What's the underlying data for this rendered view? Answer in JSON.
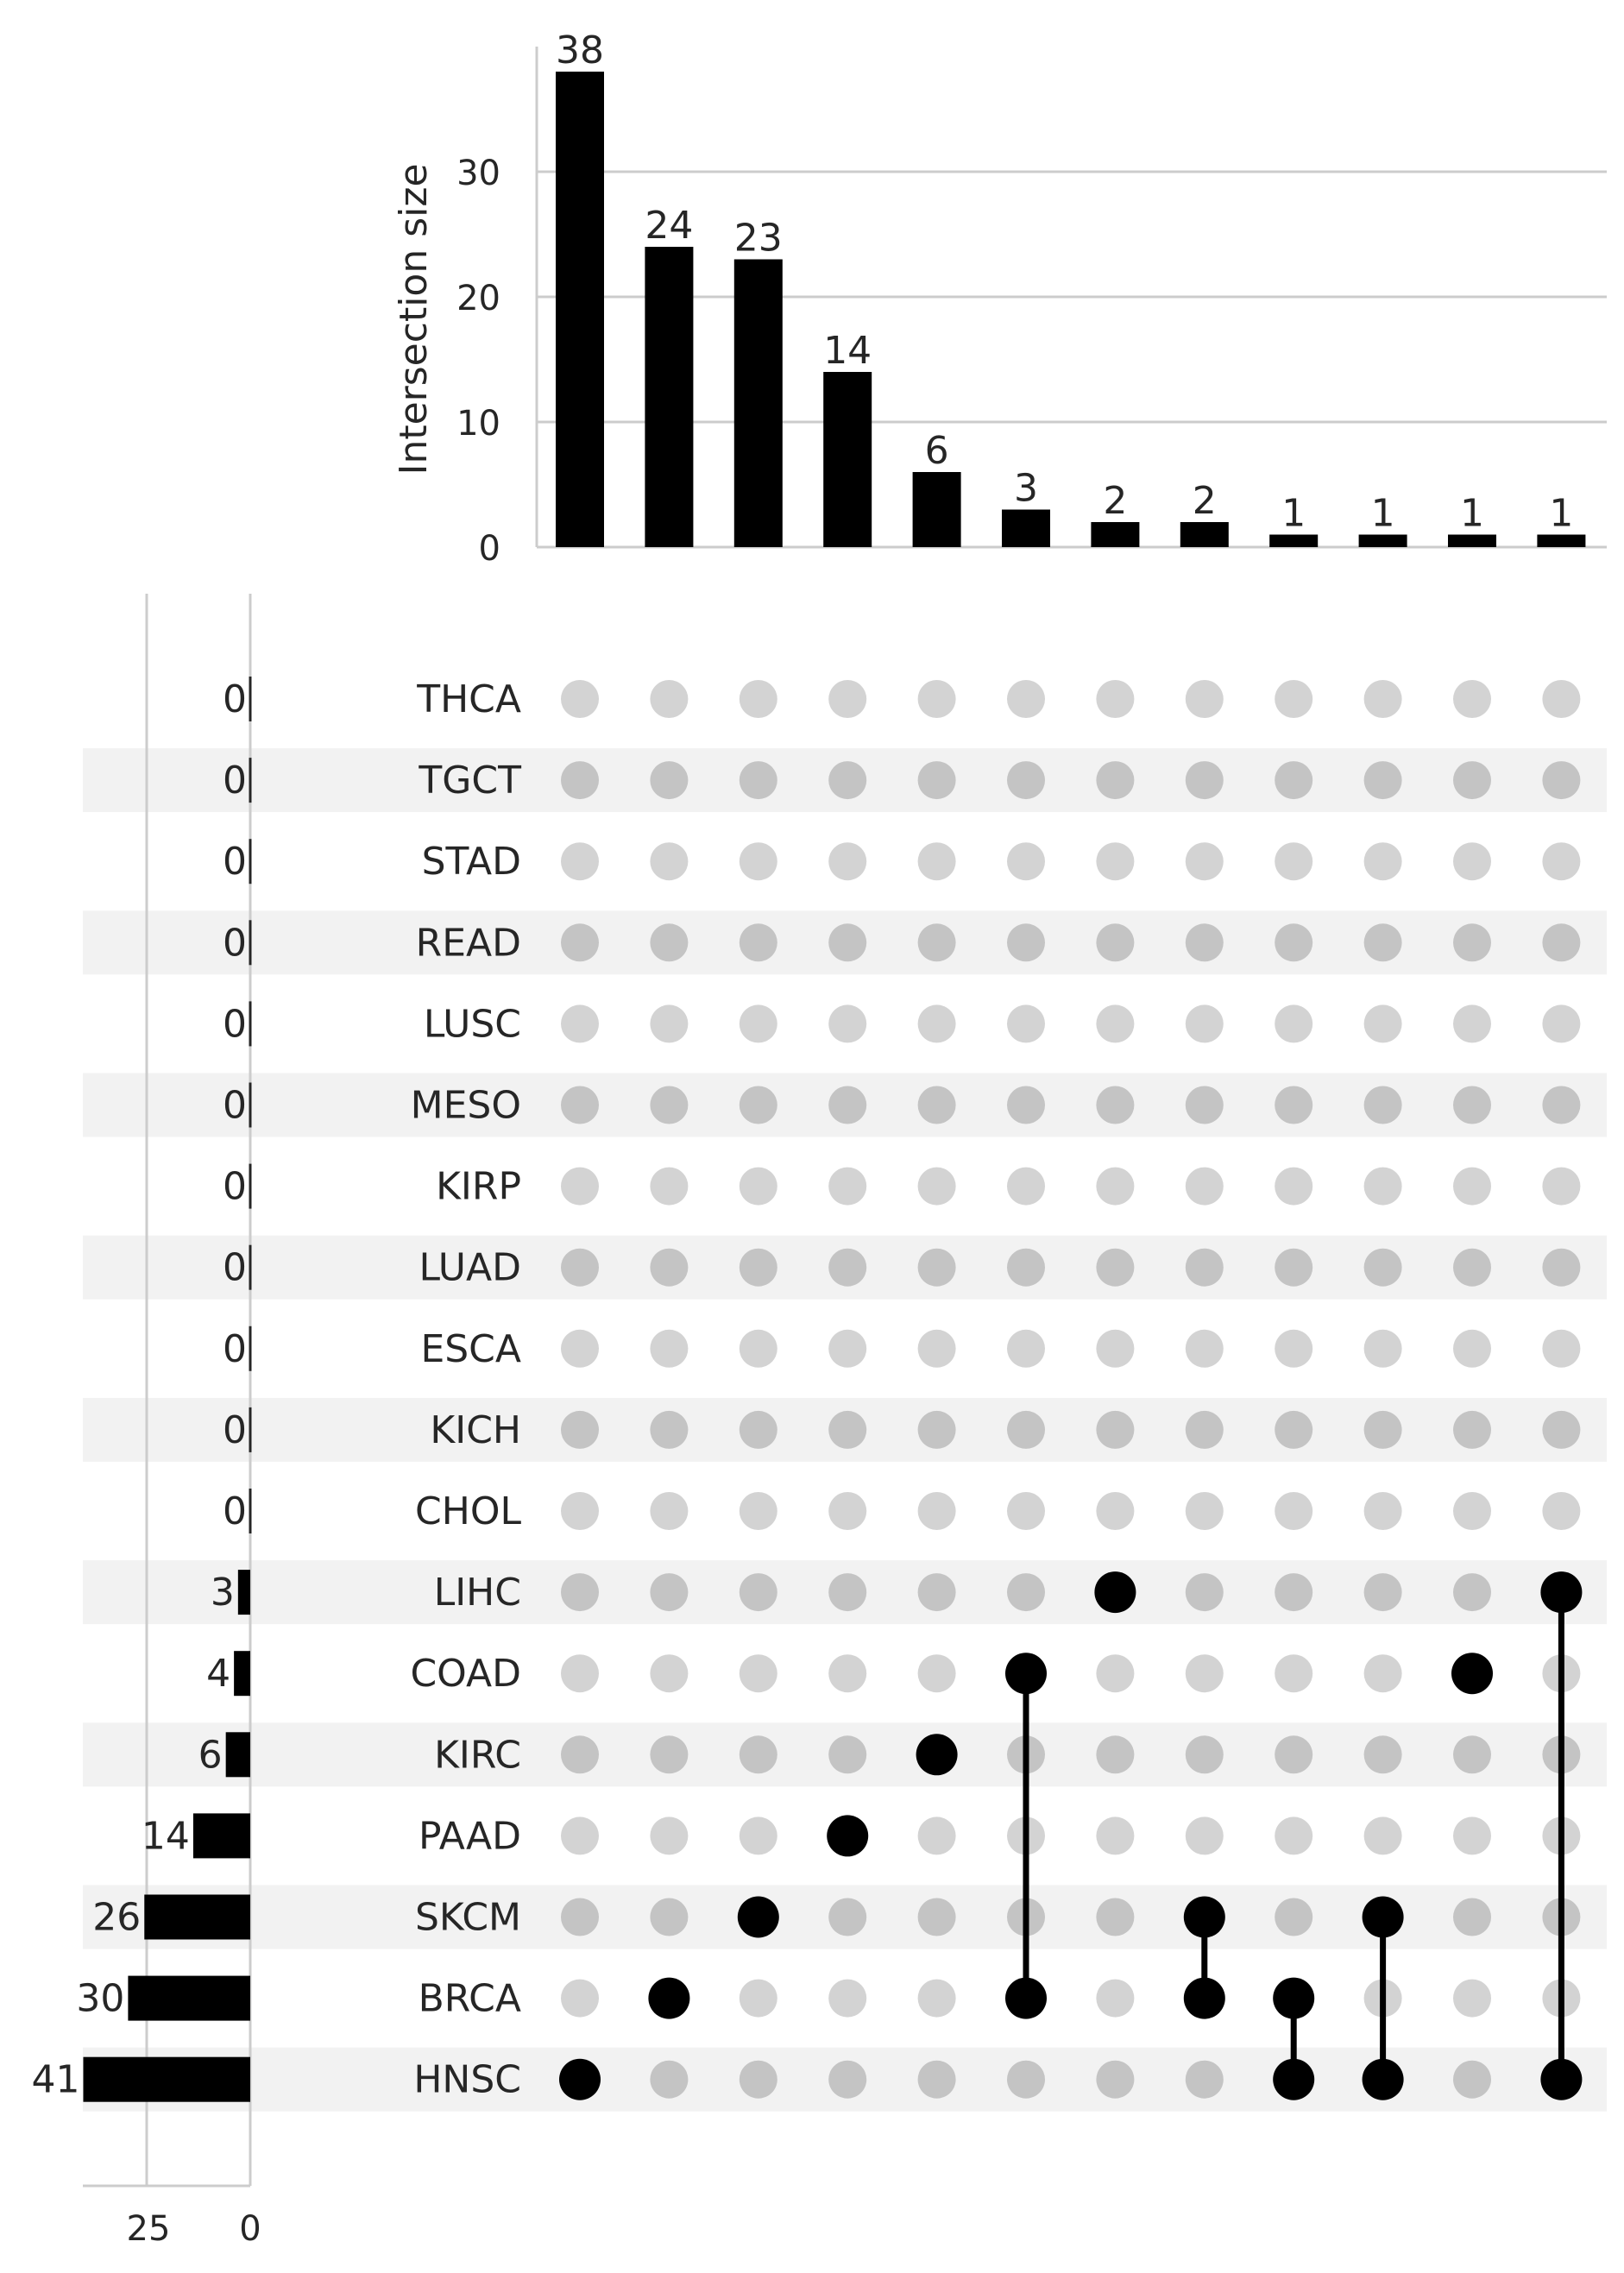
{
  "chart_data": {
    "type": "bar",
    "title": "",
    "ylabel": "Intersection size",
    "ylim": [
      0,
      40
    ],
    "y_ticks": [
      0,
      10,
      20,
      30
    ],
    "set_size_ticks": [
      25,
      0
    ],
    "intersections": [
      {
        "sets": [
          "HNSC"
        ],
        "value": 38
      },
      {
        "sets": [
          "BRCA"
        ],
        "value": 24
      },
      {
        "sets": [
          "SKCM"
        ],
        "value": 23
      },
      {
        "sets": [
          "PAAD"
        ],
        "value": 14
      },
      {
        "sets": [
          "KIRC"
        ],
        "value": 6
      },
      {
        "sets": [
          "COAD",
          "BRCA"
        ],
        "value": 3
      },
      {
        "sets": [
          "LIHC"
        ],
        "value": 2
      },
      {
        "sets": [
          "SKCM",
          "BRCA"
        ],
        "value": 2
      },
      {
        "sets": [
          "BRCA",
          "HNSC"
        ],
        "value": 1
      },
      {
        "sets": [
          "SKCM",
          "HNSC"
        ],
        "value": 1
      },
      {
        "sets": [
          "COAD"
        ],
        "value": 1
      },
      {
        "sets": [
          "LIHC",
          "HNSC"
        ],
        "value": 1
      }
    ],
    "sets": [
      {
        "name": "THCA",
        "size": 0
      },
      {
        "name": "TGCT",
        "size": 0
      },
      {
        "name": "STAD",
        "size": 0
      },
      {
        "name": "READ",
        "size": 0
      },
      {
        "name": "LUSC",
        "size": 0
      },
      {
        "name": "MESO",
        "size": 0
      },
      {
        "name": "KIRP",
        "size": 0
      },
      {
        "name": "LUAD",
        "size": 0
      },
      {
        "name": "ESCA",
        "size": 0
      },
      {
        "name": "KICH",
        "size": 0
      },
      {
        "name": "CHOL",
        "size": 0
      },
      {
        "name": "LIHC",
        "size": 3
      },
      {
        "name": "COAD",
        "size": 4
      },
      {
        "name": "KIRC",
        "size": 6
      },
      {
        "name": "PAAD",
        "size": 14
      },
      {
        "name": "SKCM",
        "size": 26
      },
      {
        "name": "BRCA",
        "size": 30
      },
      {
        "name": "HNSC",
        "size": 41
      }
    ],
    "colors": {
      "bar": "#000000",
      "dot_active": "#000000",
      "dot_inactive_light_row": "#d3d3d3",
      "dot_inactive_shaded_row": "#c4c4c4",
      "row_shade": "#f2f2f2",
      "grid": "#cccccc"
    }
  }
}
